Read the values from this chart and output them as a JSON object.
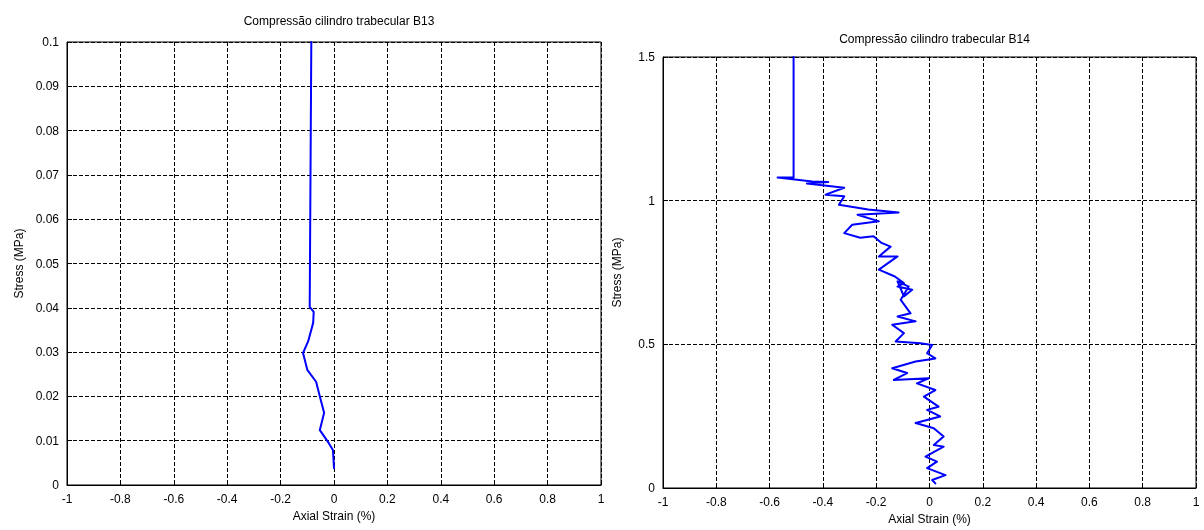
{
  "chart_data": [
    {
      "type": "line",
      "title": "Compressão cilindro trabecular B13",
      "xlabel": "Axial Strain (%)",
      "ylabel": "Stress (MPa)",
      "xlim": [
        -1,
        1
      ],
      "xticks": [
        -1,
        -0.8,
        -0.6,
        -0.4,
        -0.2,
        0,
        0.2,
        0.4,
        0.6,
        0.8,
        1
      ],
      "ylim": [
        0,
        0.1
      ],
      "yticks": [
        0,
        0.01,
        0.02,
        0.03,
        0.04,
        0.05,
        0.06,
        0.07,
        0.08,
        0.09,
        0.1
      ],
      "grid": true,
      "marker": "none",
      "line_style": "solid",
      "series": [
        {
          "color": "#0000ff",
          "x": [
            0,
            -0.004,
            -0.02,
            -0.053,
            -0.037,
            -0.053,
            -0.067,
            -0.1,
            -0.116,
            -0.097,
            -0.078,
            -0.076,
            -0.091,
            -0.085
          ],
          "values": [
            0.0038,
            0.0079,
            0.0095,
            0.0124,
            0.0163,
            0.02,
            0.0233,
            0.026,
            0.0298,
            0.0324,
            0.0366,
            0.0391,
            0.0402,
            0.1
          ]
        }
      ]
    },
    {
      "type": "line",
      "title": "Compressão cilindro trabecular B14",
      "xlabel": "Axial Strain (%)",
      "ylabel": "Stress (MPa)",
      "xlim": [
        -1,
        1
      ],
      "xticks": [
        -1,
        -0.8,
        -0.6,
        -0.4,
        -0.2,
        0,
        0.2,
        0.4,
        0.6,
        0.8,
        1
      ],
      "ylim": [
        0,
        1.5
      ],
      "yticks": [
        0,
        0.5,
        1,
        1.5
      ],
      "grid": true,
      "marker": "none",
      "line_style": "solid",
      "series": [
        {
          "color": "#0000ff",
          "x": [
            0.022,
            0.01,
            0.06,
            -0.009,
            0.028,
            -0.015,
            0.053,
            0.016,
            0.053,
            0.016,
            -0.052,
            0.04,
            -0.009,
            0.034,
            -0.021,
            0.022,
            -0.047,
            -0.003,
            -0.134,
            -0.084,
            -0.14,
            -0.052,
            0.022,
            -0.009,
            0.01,
            -0.034,
            -0.127,
            -0.096,
            -0.14,
            -0.052,
            -0.12,
            -0.071,
            -0.108,
            -0.078,
            -0.12,
            -0.096,
            -0.065,
            -0.12,
            -0.096,
            -0.13,
            -0.19,
            -0.12,
            -0.19,
            -0.146,
            -0.18,
            -0.21,
            -0.26,
            -0.32,
            -0.29,
            -0.19,
            -0.27,
            -0.116,
            -0.23,
            -0.34,
            -0.32,
            -0.39,
            -0.32,
            -0.46,
            -0.38,
            -0.44,
            -0.57,
            -0.51,
            -0.51
          ],
          "values": [
            0.016,
            0.028,
            0.045,
            0.069,
            0.092,
            0.109,
            0.144,
            0.15,
            0.179,
            0.208,
            0.226,
            0.249,
            0.272,
            0.283,
            0.318,
            0.341,
            0.364,
            0.382,
            0.376,
            0.4,
            0.417,
            0.44,
            0.451,
            0.469,
            0.498,
            0.504,
            0.51,
            0.539,
            0.568,
            0.58,
            0.597,
            0.608,
            0.655,
            0.701,
            0.719,
            0.667,
            0.69,
            0.701,
            0.713,
            0.736,
            0.76,
            0.806,
            0.806,
            0.84,
            0.853,
            0.876,
            0.871,
            0.887,
            0.916,
            0.928,
            0.951,
            0.959,
            0.969,
            0.986,
            1.015,
            1.021,
            1.045,
            1.06,
            1.065,
            1.067,
            1.081,
            1.081,
            1.5
          ]
        }
      ]
    }
  ]
}
